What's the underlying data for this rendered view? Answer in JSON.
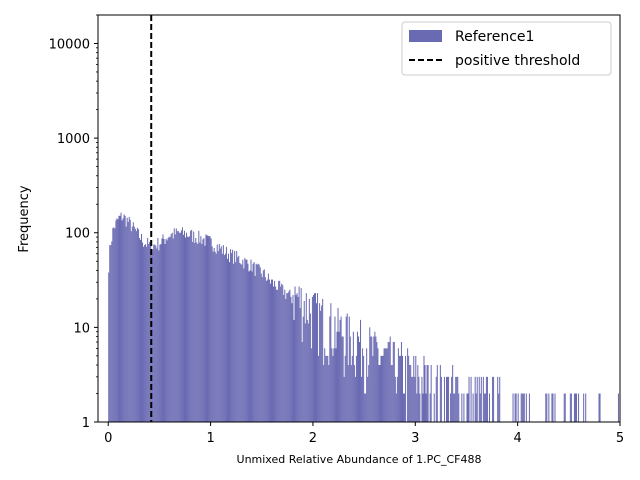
{
  "chart_data": {
    "type": "bar",
    "subtype": "histogram",
    "title": "",
    "xlabel": "Unmixed Relative Abundance of 1.PC_CF488",
    "ylabel": "Frequency",
    "xlim": [
      -0.1,
      5.0
    ],
    "ylim": [
      1,
      20000
    ],
    "yscale": "log",
    "xticks": [
      0,
      1,
      2,
      3,
      4,
      5
    ],
    "xtick_labels": [
      "0",
      "1",
      "2",
      "3",
      "4",
      "5"
    ],
    "yticks": [
      1,
      10,
      100,
      1000,
      10000
    ],
    "ytick_labels": [
      "1",
      "10",
      "100",
      "1000",
      "10000"
    ],
    "grid": false,
    "legend": {
      "position": "top-right"
    },
    "bin_width": 0.01,
    "series": [
      {
        "name": "Reference1",
        "color": "#6a6ab3",
        "profile_x": [
          0.0,
          0.02,
          0.05,
          0.1,
          0.14,
          0.2,
          0.28,
          0.35,
          0.42,
          0.5,
          0.6,
          0.7,
          0.8,
          0.9,
          1.0,
          1.1,
          1.2,
          1.3,
          1.4,
          1.5,
          1.6,
          1.7,
          1.8,
          1.9,
          2.0,
          2.2,
          2.4,
          2.6,
          2.8,
          3.0,
          3.2,
          3.5,
          3.8,
          4.0,
          4.5,
          5.0
        ],
        "profile_y": [
          40,
          75,
          110,
          140,
          150,
          130,
          100,
          80,
          72,
          78,
          95,
          100,
          95,
          88,
          80,
          68,
          58,
          52,
          45,
          38,
          30,
          25,
          20,
          16,
          13,
          9,
          7,
          5,
          4,
          3,
          2.5,
          2,
          1.6,
          1.4,
          1.2,
          1.1
        ]
      },
      {
        "name": "positive threshold",
        "type": "vline",
        "x": 0.42,
        "color": "#000000",
        "style": "dashed"
      }
    ]
  }
}
